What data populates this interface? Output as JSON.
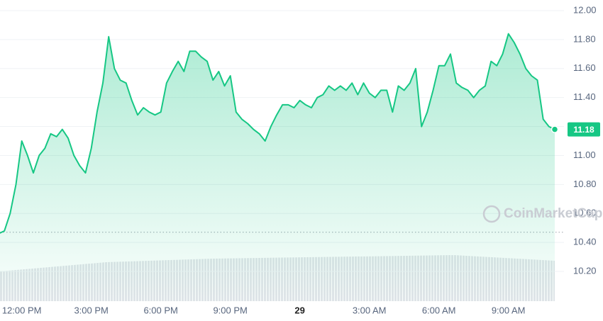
{
  "chart_data": {
    "type": "area",
    "categories": [
      null,
      null,
      null,
      null,
      "12:00 PM",
      null,
      null,
      null,
      null,
      null,
      null,
      null,
      null,
      null,
      null,
      null,
      "3:00 PM",
      null,
      null,
      null,
      null,
      null,
      null,
      null,
      null,
      null,
      null,
      null,
      "6:00 PM",
      null,
      null,
      null,
      null,
      null,
      null,
      null,
      null,
      null,
      null,
      null,
      "9:00 PM",
      null,
      null,
      null,
      null,
      null,
      null,
      null,
      null,
      null,
      null,
      null,
      "29",
      null,
      null,
      null,
      null,
      null,
      null,
      null,
      null,
      null,
      null,
      null,
      "3:00 AM",
      null,
      null,
      null,
      null,
      null,
      null,
      null,
      null,
      null,
      null,
      null,
      "6:00 AM",
      null,
      null,
      null,
      null,
      null,
      null,
      null,
      null,
      null,
      null,
      null,
      "9:00 AM",
      null,
      null,
      null,
      null,
      null,
      null,
      null,
      null
    ],
    "values": [
      10.46,
      10.48,
      10.6,
      10.8,
      11.1,
      11.0,
      10.88,
      11.0,
      11.05,
      11.15,
      11.13,
      11.18,
      11.12,
      11.0,
      10.93,
      10.88,
      11.05,
      11.3,
      11.5,
      11.82,
      11.6,
      11.52,
      11.5,
      11.38,
      11.28,
      11.33,
      11.3,
      11.28,
      11.3,
      11.5,
      11.58,
      11.65,
      11.58,
      11.72,
      11.72,
      11.68,
      11.65,
      11.52,
      11.58,
      11.48,
      11.55,
      11.3,
      11.25,
      11.22,
      11.18,
      11.15,
      11.1,
      11.2,
      11.28,
      11.35,
      11.35,
      11.33,
      11.38,
      11.35,
      11.33,
      11.4,
      11.42,
      11.48,
      11.45,
      11.48,
      11.45,
      11.5,
      11.42,
      11.5,
      11.43,
      11.4,
      11.45,
      11.45,
      11.3,
      11.48,
      11.45,
      11.5,
      11.6,
      11.2,
      11.3,
      11.45,
      11.62,
      11.62,
      11.7,
      11.5,
      11.47,
      11.45,
      11.4,
      11.45,
      11.48,
      11.65,
      11.62,
      11.7,
      11.84,
      11.78,
      11.7,
      11.6,
      11.55,
      11.52,
      11.25,
      11.2,
      11.18
    ],
    "color": "#16c784",
    "baseline": 10.47,
    "current_price": 11.18,
    "watermark": "CoinMarketCap",
    "ylim": [
      10.2,
      12.0
    ],
    "yticks": [
      {
        "value": 10.2,
        "label": "10.20"
      },
      {
        "value": 10.4,
        "label": "10.40"
      },
      {
        "value": 10.6,
        "label": "10.60"
      },
      {
        "value": 10.8,
        "label": "10.80"
      },
      {
        "value": 11.0,
        "label": "11.00"
      },
      {
        "value": 11.2,
        "label": "11.20"
      },
      {
        "value": 11.4,
        "label": "11.40"
      },
      {
        "value": 11.6,
        "label": "11.60"
      },
      {
        "value": 11.8,
        "label": "11.80"
      },
      {
        "value": 12.0,
        "label": "12.00"
      }
    ],
    "grid": true
  }
}
